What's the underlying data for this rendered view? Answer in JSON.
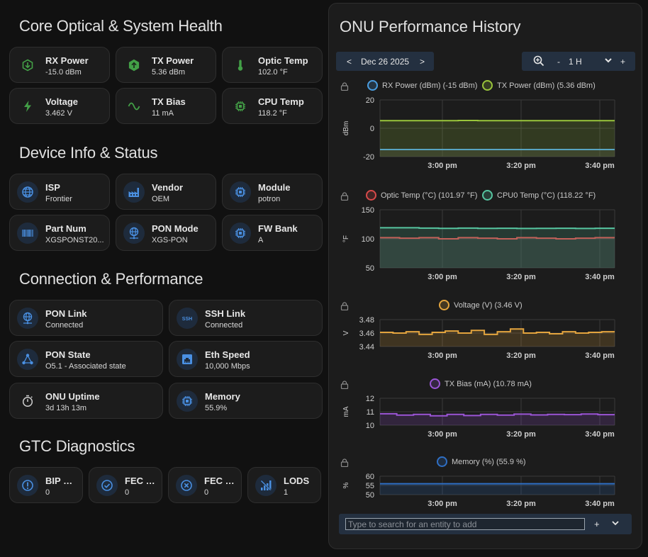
{
  "sections": {
    "core": "Core Optical & System Health",
    "device": "Device Info & Status",
    "connection": "Connection & Performance",
    "gtc": "GTC Diagnostics"
  },
  "core_tiles": [
    {
      "name": "RX Power",
      "value": "-15.0 dBm",
      "icon": "arrow-down-hex-icon",
      "color": "#43a047"
    },
    {
      "name": "TX Power",
      "value": "5.36 dBm",
      "icon": "arrow-up-hex-icon",
      "color": "#43a047"
    },
    {
      "name": "Optic Temp",
      "value": "102.0 °F",
      "icon": "thermometer-icon",
      "color": "#43a047"
    },
    {
      "name": "Voltage",
      "value": "3.462 V",
      "icon": "lightning-icon",
      "color": "#43a047"
    },
    {
      "name": "TX Bias",
      "value": "11 mA",
      "icon": "sine-wave-icon",
      "color": "#43a047"
    },
    {
      "name": "CPU Temp",
      "value": "118.2 °F",
      "icon": "chip-icon",
      "color": "#43a047"
    }
  ],
  "device_tiles": [
    {
      "name": "ISP",
      "value": "Frontier",
      "icon": "globe-icon"
    },
    {
      "name": "Vendor",
      "value": "OEM",
      "icon": "factory-icon"
    },
    {
      "name": "Module",
      "value": "potron",
      "icon": "chip-icon"
    },
    {
      "name": "Part Num",
      "value": "XGSPONST20...",
      "icon": "barcode-icon"
    },
    {
      "name": "PON Mode",
      "value": "XGS-PON",
      "icon": "globe-network-icon"
    },
    {
      "name": "FW Bank",
      "value": "A",
      "icon": "chip-icon"
    }
  ],
  "connection_tiles": [
    {
      "name": "PON Link",
      "value": "Connected",
      "icon": "globe-network-icon"
    },
    {
      "name": "SSH Link",
      "value": "Connected",
      "icon": "ssh-icon",
      "icon_text": "SSH"
    },
    {
      "name": "PON State",
      "value": "O5.1 - Associated state",
      "icon": "share-nodes-icon"
    },
    {
      "name": "Eth Speed",
      "value": "10,000 Mbps",
      "icon": "ethernet-icon"
    },
    {
      "name": "ONU Uptime",
      "value": "3d 13h 13m",
      "icon": "timer-icon"
    },
    {
      "name": "Memory",
      "value": "55.9%",
      "icon": "chip-icon"
    }
  ],
  "gtc_tiles": [
    {
      "name": "BIP Er...",
      "value": "0",
      "icon": "alert-circle-icon"
    },
    {
      "name": "FEC C...",
      "value": "0",
      "icon": "check-circle-icon"
    },
    {
      "name": "FEC U...",
      "value": "0",
      "icon": "close-circle-icon"
    },
    {
      "name": "LODS",
      "value": "1",
      "icon": "signal-off-icon"
    }
  ],
  "history": {
    "title": "ONU Performance History",
    "date": "Dec 26 2025",
    "prev": "<",
    "next": ">",
    "zoom_minus": "-",
    "range": "1 H",
    "zoom_plus": "+",
    "search_placeholder": "Type to search for an entity to add",
    "add": "+",
    "expand": "⌄"
  },
  "chart_data": [
    {
      "type": "line",
      "ylabel": "dBm",
      "ylim": [
        -20,
        20
      ],
      "yticks": [
        "20",
        "0",
        "-20"
      ],
      "xticks": [
        "3:00 pm",
        "3:20 pm",
        "3:40 pm"
      ],
      "series": [
        {
          "name": "RX Power (dBm) (-15 dBm)",
          "color": "#4a9de0",
          "values": [
            -15,
            -15,
            -15,
            -15,
            -15,
            -15,
            -15,
            -15,
            -15,
            -15,
            -15,
            -15
          ]
        },
        {
          "name": "TX Power (dBm) (5.36 dBm)",
          "color": "#9ac53b",
          "values": [
            5.36,
            5.36,
            5.4,
            5.36,
            5.5,
            5.36,
            5.36,
            5.4,
            5.36,
            5.36,
            5.4,
            5.36
          ]
        }
      ]
    },
    {
      "type": "line",
      "ylabel": "°F",
      "ylim": [
        50,
        150
      ],
      "yticks": [
        "150",
        "100",
        "50"
      ],
      "xticks": [
        "3:00 pm",
        "3:20 pm",
        "3:40 pm"
      ],
      "series": [
        {
          "name": "Optic Temp (°C) (101.97 °F)",
          "color": "#d84a4a",
          "values": [
            102,
            101,
            102,
            100,
            102,
            101,
            100,
            102,
            101,
            100,
            101,
            102
          ]
        },
        {
          "name": "CPU0 Temp (°C) (118.22 °F)",
          "color": "#56c5a0",
          "values": [
            119,
            119,
            118.5,
            118,
            118.5,
            118,
            118.2,
            117.8,
            118,
            118.2,
            117.8,
            118.2
          ]
        }
      ]
    },
    {
      "type": "line",
      "ylabel": "V",
      "ylim": [
        3.44,
        3.48
      ],
      "yticks": [
        "3.48",
        "3.46",
        "3.44"
      ],
      "xticks": [
        "3:00 pm",
        "3:20 pm",
        "3:40 pm"
      ],
      "series": [
        {
          "name": "Voltage (V) (3.46 V)",
          "color": "#e3a43e",
          "values": [
            3.461,
            3.46,
            3.462,
            3.458,
            3.461,
            3.463,
            3.46,
            3.464,
            3.458,
            3.462,
            3.466,
            3.46,
            3.461,
            3.459,
            3.462,
            3.46,
            3.461,
            3.462
          ]
        }
      ]
    },
    {
      "type": "line",
      "ylabel": "mA",
      "ylim": [
        10,
        12
      ],
      "yticks": [
        "12",
        "11",
        "10"
      ],
      "xticks": [
        "3:00 pm",
        "3:20 pm",
        "3:40 pm"
      ],
      "series": [
        {
          "name": "TX Bias (mA) (10.78 mA)",
          "color": "#9b55d6",
          "values": [
            10.85,
            10.75,
            10.8,
            10.7,
            10.8,
            10.72,
            10.8,
            10.75,
            10.82,
            10.76,
            10.8,
            10.78,
            10.83,
            10.78
          ]
        }
      ]
    },
    {
      "type": "line",
      "ylabel": "%",
      "ylim": [
        50,
        60
      ],
      "yticks": [
        "60",
        "55",
        "50"
      ],
      "xticks": [
        "3:00 pm",
        "3:20 pm",
        "3:40 pm"
      ],
      "series": [
        {
          "name": "Memory (%) (55.9 %)",
          "color": "#2f6fc4",
          "values": [
            55.9,
            55.9,
            55.9,
            55.9,
            55.9,
            55.9,
            55.9,
            55.9,
            55.9,
            55.9
          ]
        }
      ]
    }
  ]
}
